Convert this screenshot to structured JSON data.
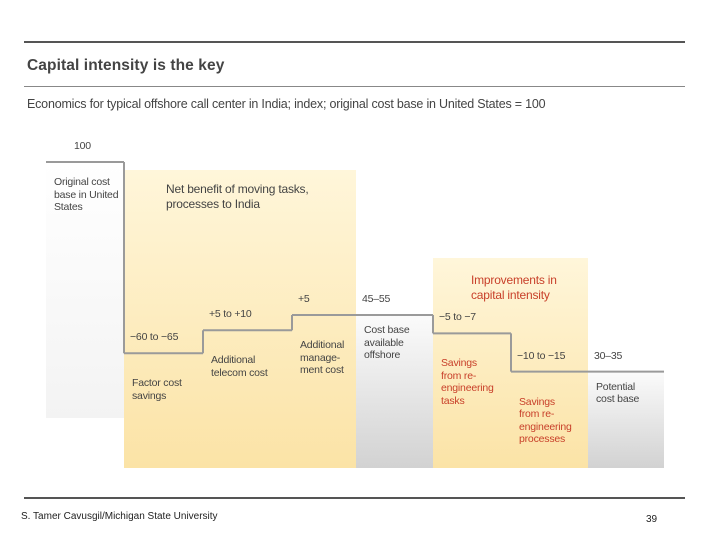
{
  "header": {
    "title": "Capital intensity is the key",
    "subtitle": "Economics for typical offshore call center in India; index; original cost base in United States = 100"
  },
  "chart_data": {
    "type": "bar",
    "subtype": "waterfall",
    "title": "Capital intensity is the key",
    "subtitle": "Economics for typical offshore call center in India; index; original cost base in United States = 100",
    "ylim": [
      0,
      100
    ],
    "groups": [
      {
        "label": "Net benefit of moving tasks, processes to India"
      },
      {
        "label": "Improvements in capital intensity"
      }
    ],
    "steps": [
      {
        "label_lines": [
          "Original cost",
          "base in United",
          "States"
        ],
        "value_text": "100",
        "start": 0,
        "end": 100,
        "kind": "total"
      },
      {
        "label_lines": [
          "Factor cost",
          "savings"
        ],
        "value_text": "−60 to −65",
        "start": 100,
        "end": 37.5,
        "kind": "decrease"
      },
      {
        "label_lines": [
          "Additional",
          "telecom cost"
        ],
        "value_text": "+5 to +10",
        "start": 37.5,
        "end": 45,
        "kind": "increase"
      },
      {
        "label_lines": [
          "Additional",
          "manage-",
          "ment cost"
        ],
        "value_text": "+5",
        "start": 45,
        "end": 50,
        "kind": "increase"
      },
      {
        "label_lines": [
          "Cost base",
          "available",
          "offshore"
        ],
        "value_text": "45–55",
        "start": 0,
        "end": 50,
        "kind": "total"
      },
      {
        "label_lines": [
          "Savings",
          "from re-",
          "engineering",
          "tasks"
        ],
        "value_text": "−5 to −7",
        "start": 50,
        "end": 44,
        "kind": "decrease"
      },
      {
        "label_lines": [
          "Savings",
          "from re-",
          "engineering",
          "processes"
        ],
        "value_text": "−10 to −15",
        "start": 44,
        "end": 31.5,
        "kind": "decrease"
      },
      {
        "label_lines": [
          "Potential",
          "cost base"
        ],
        "value_text": "30–35",
        "start": 0,
        "end": 31.5,
        "kind": "total"
      }
    ]
  },
  "footer": {
    "author": "S. Tamer Cavusgil/Michigan State University",
    "page_number": "39"
  },
  "colors": {
    "highlight": "#fbe7b4",
    "total_bar": "#d7d7d7",
    "group2_text": "#c8402a",
    "text": "#444444",
    "rule": "#555555"
  }
}
